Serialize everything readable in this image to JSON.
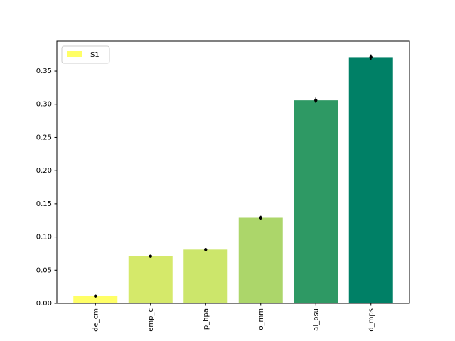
{
  "chart_data": {
    "type": "bar",
    "categories": [
      "de_cm",
      "emp_c",
      "p_hpa",
      "o_mm",
      "al_psu",
      "d_mps"
    ],
    "series": [
      {
        "name": "S1",
        "colors": [
          "#ffff66",
          "#d5e96a",
          "#cce66b",
          "#acd66a",
          "#2e9964",
          "#008066"
        ],
        "values": [
          0.011,
          0.071,
          0.081,
          0.129,
          0.306,
          0.371
        ],
        "errors": [
          0.001,
          0.002,
          0.002,
          0.003,
          0.004,
          0.004
        ]
      }
    ],
    "ylim": [
      0,
      0.395
    ],
    "yticks": [
      {
        "value": 0,
        "label": "0.00"
      },
      {
        "value": 0.05,
        "label": "0.05"
      },
      {
        "value": 0.1,
        "label": "0.10"
      },
      {
        "value": 0.15,
        "label": "0.15"
      },
      {
        "value": 0.2,
        "label": "0.20"
      },
      {
        "value": 0.25,
        "label": "0.25"
      },
      {
        "value": 0.3,
        "label": "0.30"
      },
      {
        "value": 0.35,
        "label": "0.35"
      }
    ],
    "legend": "upper left"
  }
}
